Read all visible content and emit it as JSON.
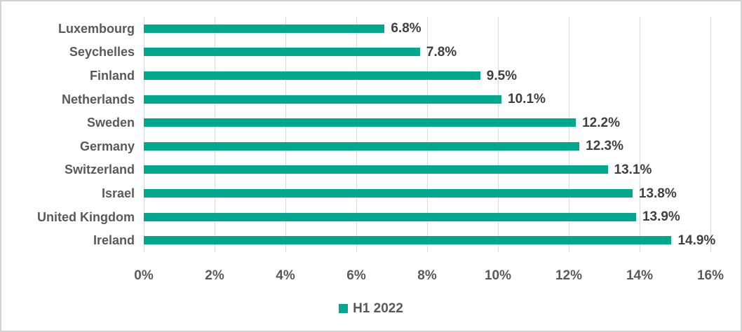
{
  "chart_data": {
    "type": "bar",
    "orientation": "horizontal",
    "title": "",
    "xlabel": "",
    "ylabel": "",
    "categories": [
      "Luxembourg",
      "Seychelles",
      "Finland",
      "Netherlands",
      "Sweden",
      "Germany",
      "Switzerland",
      "Israel",
      "United Kingdom",
      "Ireland"
    ],
    "values": [
      6.8,
      7.8,
      9.5,
      10.1,
      12.2,
      12.3,
      13.1,
      13.8,
      13.9,
      14.9
    ],
    "value_labels": [
      "6.8%",
      "7.8%",
      "9.5%",
      "10.1%",
      "12.2%",
      "12.3%",
      "13.1%",
      "13.8%",
      "13.9%",
      "14.9%"
    ],
    "series_name": "H1 2022",
    "xlim": [
      0,
      16
    ],
    "x_tick_values": [
      0,
      2,
      4,
      6,
      8,
      10,
      12,
      14,
      16
    ],
    "x_tick_labels": [
      "0%",
      "2%",
      "4%",
      "6%",
      "8%",
      "10%",
      "12%",
      "14%",
      "16%"
    ],
    "grid": true,
    "legend_position": "bottom",
    "colors": {
      "bar": "#00a88e",
      "gridline": "#d9d9d9",
      "axis_label": "#595959",
      "value_label": "#3f3f3f"
    }
  }
}
